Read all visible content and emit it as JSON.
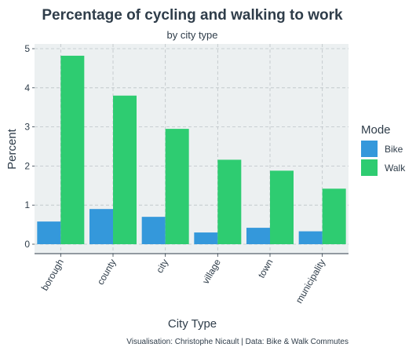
{
  "chart_data": {
    "type": "bar",
    "title": "Percentage of cycling and walking to work",
    "subtitle": "by city type",
    "xlabel": "City Type",
    "ylabel": "Percent",
    "categories": [
      "borough",
      "county",
      "city",
      "village",
      "town",
      "municipality"
    ],
    "series": [
      {
        "name": "Bike",
        "color": "#3498db",
        "values": [
          0.58,
          0.9,
          0.7,
          0.3,
          0.42,
          0.33
        ]
      },
      {
        "name": "Walk",
        "color": "#2ecc71",
        "values": [
          4.82,
          3.8,
          2.95,
          2.16,
          1.88,
          1.42
        ]
      }
    ],
    "ylim": [
      0,
      5
    ],
    "yticks": [
      0,
      1,
      2,
      3,
      4,
      5
    ],
    "grid": true,
    "legend": {
      "title": "Mode",
      "placement": "right"
    },
    "caption": "Visualisation: Christophe Nicault | Data: Bike & Walk Commutes",
    "colors": {
      "panel_background": "#ecf0f1",
      "grid": "#bdc3c7",
      "text": "#2f3d4a"
    }
  }
}
